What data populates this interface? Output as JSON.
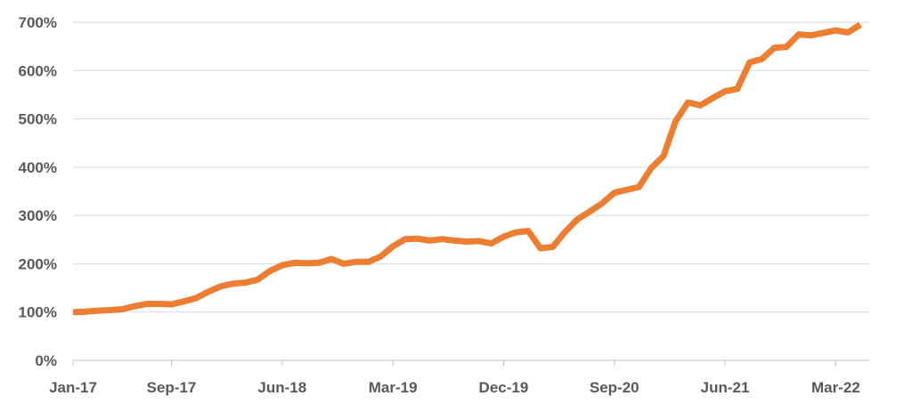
{
  "chart_data": {
    "type": "line",
    "title": "",
    "xlabel": "",
    "ylabel": "",
    "ylim": [
      0,
      700
    ],
    "y_tick_labels": [
      "0%",
      "100%",
      "200%",
      "300%",
      "400%",
      "500%",
      "600%",
      "700%"
    ],
    "y_tick_values": [
      0,
      100,
      200,
      300,
      400,
      500,
      600,
      700
    ],
    "x_tick_labels": [
      "Jan-17",
      "Sep-17",
      "Jun-18",
      "Mar-19",
      "Dec-19",
      "Sep-20",
      "Jun-21",
      "Mar-22"
    ],
    "x_tick_index": [
      0,
      8,
      17,
      26,
      35,
      44,
      53,
      62
    ],
    "grid": true,
    "legend": "none",
    "line_color": "#ED7D31",
    "series": [
      {
        "values": [
          100,
          101,
          103,
          104,
          106,
          112,
          117,
          117,
          116,
          122,
          129,
          142,
          153,
          159,
          161,
          167,
          185,
          197,
          202,
          201,
          202,
          210,
          200,
          204,
          204,
          215,
          236,
          251,
          252,
          248,
          251,
          248,
          246,
          247,
          242,
          256,
          265,
          268,
          232,
          235,
          266,
          292,
          308,
          325,
          347,
          353,
          359,
          398,
          423,
          496,
          534,
          528,
          543,
          557,
          562,
          617,
          624,
          647,
          649,
          675,
          673,
          678,
          683,
          679,
          695
        ]
      }
    ]
  }
}
